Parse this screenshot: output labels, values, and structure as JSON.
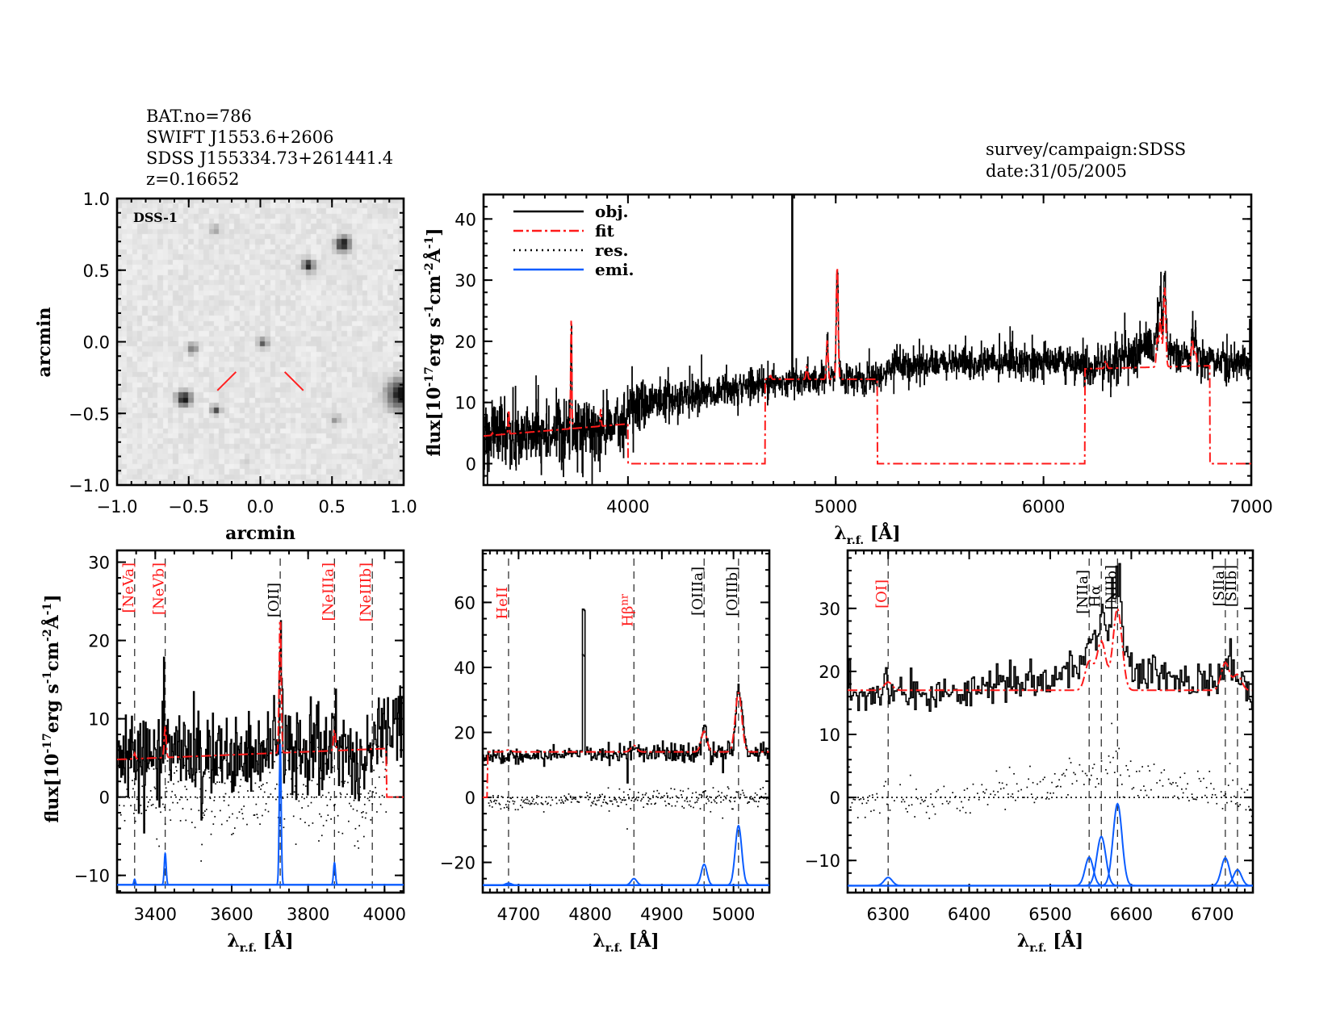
{
  "header": {
    "lines": [
      "BAT.no=786",
      "SWIFT J1553.6+2606",
      "SDSS J155334.73+261441.4",
      "z=0.16652"
    ],
    "survey": "survey/campaign:SDSS",
    "date": "date:31/05/2005"
  },
  "colors": {
    "obj": "#000000",
    "fit": "#ff1a1a",
    "res": "#000000",
    "emi": "#0a5cff",
    "marker": "#333333",
    "target_marker": "#ff2020"
  },
  "legend": [
    {
      "label": "obj.",
      "style": "solid",
      "color": "#000000"
    },
    {
      "label": "fit",
      "style": "dash-dot",
      "color": "#ff1a1a"
    },
    {
      "label": "res.",
      "style": "dotted",
      "color": "#000000"
    },
    {
      "label": "emi.",
      "style": "solid",
      "color": "#0a5cff"
    }
  ],
  "ylabel_parts": [
    {
      "text": "flux[10",
      "sup": false
    },
    {
      "text": "-17",
      "sup": true
    },
    {
      "text": "erg s",
      "sup": false
    },
    {
      "text": "-1",
      "sup": true
    },
    {
      "text": "cm",
      "sup": false
    },
    {
      "text": "-2",
      "sup": true
    },
    {
      "text": "Å",
      "sup": false
    },
    {
      "text": "-1",
      "sup": true
    },
    {
      "text": "]",
      "sup": false
    }
  ],
  "xlabel_parts": [
    {
      "text": "λ",
      "sub": false
    },
    {
      "text": "r.f.",
      "sub": true
    },
    {
      "text": " [Å]",
      "sub": false
    }
  ],
  "emission_lines": [
    {
      "name": "[NeVa]",
      "wave": 3346,
      "amp": 0.7,
      "sigma": 2
    },
    {
      "name": "[NeVb]",
      "wave": 3426,
      "amp": 4,
      "sigma": 2.5
    },
    {
      "name": "[OII]",
      "wave": 3727,
      "amp": 18,
      "sigma": 2.5
    },
    {
      "name": "[NeIIIa]",
      "wave": 3869,
      "amp": 2.8,
      "sigma": 2.5
    },
    {
      "name": "[NeIIIb]",
      "wave": 3968,
      "amp": 0,
      "sigma": 2.5
    },
    {
      "name": "HeII",
      "wave": 4686,
      "amp": 0.6,
      "sigma": 4
    },
    {
      "name": "Hβnr",
      "wave": 4861,
      "amp": 2,
      "sigma": 4
    },
    {
      "name": "[OIIIa]",
      "wave": 4959,
      "amp": 6.4,
      "sigma": 4
    },
    {
      "name": "[OIIIb]",
      "wave": 5007,
      "amp": 18.3,
      "sigma": 4.5
    },
    {
      "name": "[OI]",
      "wave": 6300,
      "amp": 1.3,
      "sigma": 5
    },
    {
      "name": "[NIIa]",
      "wave": 6548,
      "amp": 4.5,
      "sigma": 5
    },
    {
      "name": "Hα",
      "wave": 6563,
      "amp": 7.8,
      "sigma": 5.5
    },
    {
      "name": "[NIIb]",
      "wave": 6583,
      "amp": 13,
      "sigma": 5.5
    },
    {
      "name": "[SIIa]",
      "wave": 6716,
      "amp": 4.4,
      "sigma": 5
    },
    {
      "name": "[SIIb]",
      "wave": 6731,
      "amp": 2.5,
      "sigma": 5
    }
  ],
  "chart_data": [
    {
      "id": "dss",
      "type": "image",
      "label": "DSS-1",
      "xlabel": "arcmin",
      "ylabel": "arcmin",
      "xlim": [
        -1,
        1
      ],
      "ylim": [
        -1,
        1
      ],
      "x_ticks": [
        -1.0,
        -0.5,
        0.0,
        0.5,
        1.0
      ],
      "x_tick_labels": [
        "−1.0",
        "−0.5",
        "0.0",
        "0.5",
        "1.0"
      ],
      "x_minor": 0.1,
      "y_ticks": [
        -1.0,
        -0.5,
        0.0,
        0.5,
        1.0
      ],
      "y_tick_labels": [
        "−1.0",
        "−0.5",
        "0.0",
        "0.5",
        "1.0"
      ],
      "y_minor": 0.1,
      "sources": [
        {
          "x": 0.58,
          "y": 0.68,
          "strength": 0.95,
          "size": 0.035
        },
        {
          "x": 0.34,
          "y": 0.53,
          "strength": 0.95,
          "size": 0.028
        },
        {
          "x": -0.32,
          "y": 0.78,
          "strength": 0.45,
          "size": 0.02
        },
        {
          "x": -0.47,
          "y": -0.05,
          "strength": 0.5,
          "size": 0.025
        },
        {
          "x": 0.02,
          "y": -0.01,
          "strength": 0.6,
          "size": 0.025
        },
        {
          "x": -0.53,
          "y": -0.4,
          "strength": 1.0,
          "size": 0.035
        },
        {
          "x": -0.31,
          "y": -0.48,
          "strength": 0.75,
          "size": 0.022
        },
        {
          "x": 0.53,
          "y": -0.55,
          "strength": 0.35,
          "size": 0.025
        },
        {
          "x": 0.99,
          "y": -0.37,
          "strength": 1.0,
          "size": 0.07
        },
        {
          "x": -0.1,
          "y": -0.85,
          "strength": 0.2,
          "size": 0.02
        }
      ],
      "target_markers": [
        [
          -0.3,
          -0.34,
          -0.17,
          -0.21
        ],
        [
          0.17,
          -0.21,
          0.3,
          -0.34
        ]
      ]
    },
    {
      "id": "main",
      "type": "line",
      "xlim": [
        3305,
        7000
      ],
      "ylim": [
        -3.5,
        44
      ],
      "x_ticks": [
        4000,
        5000,
        6000,
        7000
      ],
      "x_tick_labels": [
        "4000",
        "5000",
        "6000",
        "7000"
      ],
      "x_minor": 100,
      "y_ticks": [
        0,
        10,
        20,
        30,
        40
      ],
      "y_tick_labels": [
        "0",
        "10",
        "20",
        "30",
        "40"
      ],
      "y_minor": 2,
      "legend_position": "top-left",
      "continuum": [
        [
          3300,
          4.5
        ],
        [
          3700,
          5.5
        ],
        [
          3990,
          6.5
        ],
        [
          4010,
          9.5
        ],
        [
          4300,
          11
        ],
        [
          4650,
          13
        ],
        [
          5000,
          13.8
        ],
        [
          5200,
          14
        ],
        [
          5280,
          16
        ],
        [
          5600,
          16.5
        ],
        [
          6000,
          17
        ],
        [
          6200,
          15.8
        ],
        [
          6300,
          16
        ],
        [
          6450,
          18
        ],
        [
          6520,
          19.5
        ],
        [
          6650,
          18
        ],
        [
          6800,
          17
        ],
        [
          7000,
          16
        ]
      ],
      "noise": [
        [
          3300,
          3
        ],
        [
          4000,
          2.5
        ],
        [
          4100,
          2
        ],
        [
          4700,
          1.2
        ],
        [
          6200,
          1.5
        ],
        [
          6400,
          1.8
        ],
        [
          7000,
          1.2
        ]
      ],
      "fit_segments": [
        {
          "range": [
            3300,
            4000
          ],
          "level": [
            4.5,
            6.5
          ]
        },
        {
          "range": [
            4660,
            5200
          ],
          "level": [
            13.8,
            13.8
          ]
        },
        {
          "range": [
            6200,
            6800
          ],
          "level": [
            15.5,
            16
          ]
        }
      ],
      "artifacts": [
        {
          "wave": 4790,
          "peak": 60,
          "width": 4
        }
      ]
    },
    {
      "id": "left",
      "type": "line",
      "xlim": [
        3300,
        4050
      ],
      "ylim": [
        -12.2,
        31.5
      ],
      "x_ticks": [
        3400,
        3600,
        3800,
        4000
      ],
      "x_tick_labels": [
        "3400",
        "3600",
        "3800",
        "4000"
      ],
      "x_minor": 50,
      "y_ticks": [
        -10,
        0,
        10,
        20,
        30
      ],
      "y_tick_labels": [
        "−10",
        "0",
        "10",
        "20",
        "30"
      ],
      "y_minor": 2,
      "continuum": [
        [
          3300,
          5
        ],
        [
          3700,
          6
        ],
        [
          3900,
          6.5
        ],
        [
          3930,
          3
        ],
        [
          3960,
          6
        ],
        [
          4000,
          9
        ],
        [
          4050,
          10.5
        ]
      ],
      "noise": [
        [
          3300,
          3.2
        ],
        [
          4050,
          2.5
        ]
      ],
      "fit_segments": [
        {
          "range": [
            3300,
            4005
          ],
          "level": [
            4.8,
            6.2
          ]
        }
      ],
      "artifacts": [],
      "emi_baseline": -11.2,
      "markers": [
        {
          "label": "[NeVa]",
          "wave": 3346,
          "color": "#ff1a1a"
        },
        {
          "label": "[NeVb]",
          "wave": 3426,
          "color": "#ff1a1a"
        },
        {
          "label": "[OII]",
          "wave": 3727,
          "color": "#000000"
        },
        {
          "label": "[NeIIIa]",
          "wave": 3869,
          "color": "#ff1a1a"
        },
        {
          "label": "[NeIIIb]",
          "wave": 3968,
          "color": "#ff1a1a"
        }
      ]
    },
    {
      "id": "mid",
      "type": "line",
      "xlim": [
        4650,
        5050
      ],
      "ylim": [
        -29.3,
        76
      ],
      "x_ticks": [
        4700,
        4800,
        4900,
        5000
      ],
      "x_tick_labels": [
        "4700",
        "4800",
        "4900",
        "5000"
      ],
      "x_minor": 10,
      "y_ticks": [
        -20,
        0,
        20,
        40,
        60
      ],
      "y_tick_labels": [
        "−20",
        "0",
        "20",
        "40",
        "60"
      ],
      "y_minor": 5,
      "continuum": [
        [
          4650,
          12.5
        ],
        [
          5050,
          14
        ]
      ],
      "noise": [
        [
          4650,
          1.3
        ],
        [
          5050,
          1.3
        ]
      ],
      "fit_segments": [
        {
          "range": [
            4657,
            5050
          ],
          "level": [
            14,
            14
          ]
        }
      ],
      "artifacts": [
        {
          "wave": 4790,
          "peak": 58,
          "width": 4
        }
      ],
      "emi_baseline": -27,
      "markers": [
        {
          "label": "HeII",
          "wave": 4686,
          "color": "#ff1a1a"
        },
        {
          "label": "Hβ",
          "sub": "nr",
          "wave": 4861,
          "color": "#ff1a1a"
        },
        {
          "label": "[OIIIa]",
          "wave": 4959,
          "color": "#000000"
        },
        {
          "label": "[OIIIb]",
          "wave": 5007,
          "color": "#000000"
        }
      ]
    },
    {
      "id": "right",
      "type": "line",
      "xlim": [
        6250,
        6750
      ],
      "ylim": [
        -15.1,
        39.2
      ],
      "x_ticks": [
        6300,
        6400,
        6500,
        6600,
        6700
      ],
      "x_tick_labels": [
        "6300",
        "6400",
        "6500",
        "6600",
        "6700"
      ],
      "x_minor": 10,
      "y_ticks": [
        -10,
        0,
        10,
        20,
        30
      ],
      "y_tick_labels": [
        "−10",
        "0",
        "10",
        "20",
        "30"
      ],
      "y_minor": 2,
      "continuum": [
        [
          6250,
          16.5
        ],
        [
          6400,
          16.8
        ],
        [
          6500,
          18.5
        ],
        [
          6540,
          21
        ],
        [
          6600,
          20.5
        ],
        [
          6650,
          18.5
        ],
        [
          6700,
          18
        ],
        [
          6750,
          16
        ]
      ],
      "noise": [
        [
          6250,
          1.6
        ],
        [
          6750,
          1.6
        ]
      ],
      "fit_segments": [
        {
          "range": [
            6250,
            6750
          ],
          "level": [
            17,
            17
          ]
        }
      ],
      "artifacts": [],
      "emi_baseline": -14,
      "markers": [
        {
          "label": "[OI]",
          "wave": 6300,
          "color": "#ff1a1a"
        },
        {
          "label": "[NIIa]",
          "wave": 6548,
          "color": "#000000"
        },
        {
          "label": "Hα",
          "wave": 6563,
          "color": "#000000"
        },
        {
          "label": "[NIIb]",
          "wave": 6583,
          "color": "#000000"
        },
        {
          "label": "[SIIa]",
          "wave": 6716,
          "color": "#000000"
        },
        {
          "label": "[SIIb]",
          "wave": 6731,
          "color": "#000000"
        }
      ]
    }
  ]
}
